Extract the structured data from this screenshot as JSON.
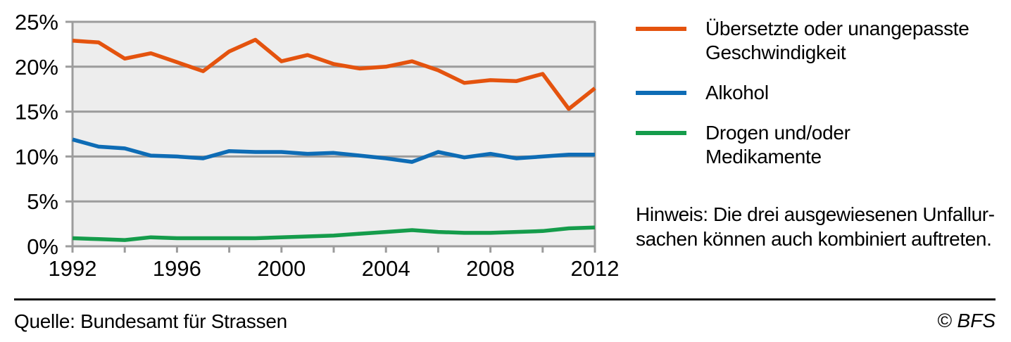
{
  "chart_data": {
    "type": "line",
    "x": [
      1992,
      1993,
      1994,
      1995,
      1996,
      1997,
      1998,
      1999,
      2000,
      2001,
      2002,
      2003,
      2004,
      2005,
      2006,
      2007,
      2008,
      2009,
      2010,
      2011,
      2012
    ],
    "series": [
      {
        "name": "Übersetzte oder unangepasste Geschwindigkeit",
        "color": "#E4530E",
        "values": [
          22.9,
          22.7,
          20.9,
          21.5,
          20.5,
          19.5,
          21.7,
          23.0,
          20.6,
          21.3,
          20.3,
          19.8,
          20.0,
          20.6,
          19.6,
          18.2,
          18.5,
          18.4,
          19.2,
          15.3,
          17.6
        ]
      },
      {
        "name": "Alkohol",
        "color": "#0E6CB5",
        "values": [
          11.9,
          11.1,
          10.9,
          10.1,
          10.0,
          9.8,
          10.6,
          10.5,
          10.5,
          10.3,
          10.4,
          10.1,
          9.8,
          9.4,
          10.5,
          9.9,
          10.3,
          9.8,
          10.0,
          10.2,
          10.2
        ]
      },
      {
        "name": "Drogen und/oder Medikamente",
        "color": "#159C4B",
        "values": [
          0.9,
          0.8,
          0.7,
          1.0,
          0.9,
          0.9,
          0.9,
          0.9,
          1.0,
          1.1,
          1.2,
          1.4,
          1.6,
          1.8,
          1.6,
          1.5,
          1.5,
          1.6,
          1.7,
          2.0,
          2.1
        ]
      }
    ],
    "xlim": [
      1992,
      2012
    ],
    "ylim": [
      0,
      25
    ],
    "yticks": [
      0,
      5,
      10,
      15,
      20,
      25
    ],
    "ytick_labels": [
      "0%",
      "5%",
      "10%",
      "15%",
      "20%",
      "25%"
    ],
    "xticks_labeled": [
      1992,
      1996,
      2000,
      2004,
      2008,
      2012
    ],
    "xtick_labels": [
      "1992",
      "1996",
      "2000",
      "2004",
      "2008",
      "2012"
    ],
    "xtick_minor_step": 2,
    "grid": true,
    "legend_position": "right",
    "plot_background": "#EDEDED",
    "grid_color": "#9C9C9C"
  },
  "legend": {
    "items": [
      {
        "color": "#E4530E",
        "lines": [
          "Übersetzte oder unangepasste",
          "Geschwindigkeit"
        ]
      },
      {
        "color": "#0E6CB5",
        "lines": [
          "Alkohol"
        ]
      },
      {
        "color": "#159C4B",
        "lines": [
          "Drogen und/oder",
          "Medikamente"
        ]
      }
    ]
  },
  "note": {
    "lines": [
      "Hinweis: Die drei ausgewiesenen Unfallur-",
      "sachen können auch kombiniert auftreten."
    ]
  },
  "footer": {
    "source": "Quelle: Bundesamt für Strassen",
    "copyright": "© BFS"
  }
}
